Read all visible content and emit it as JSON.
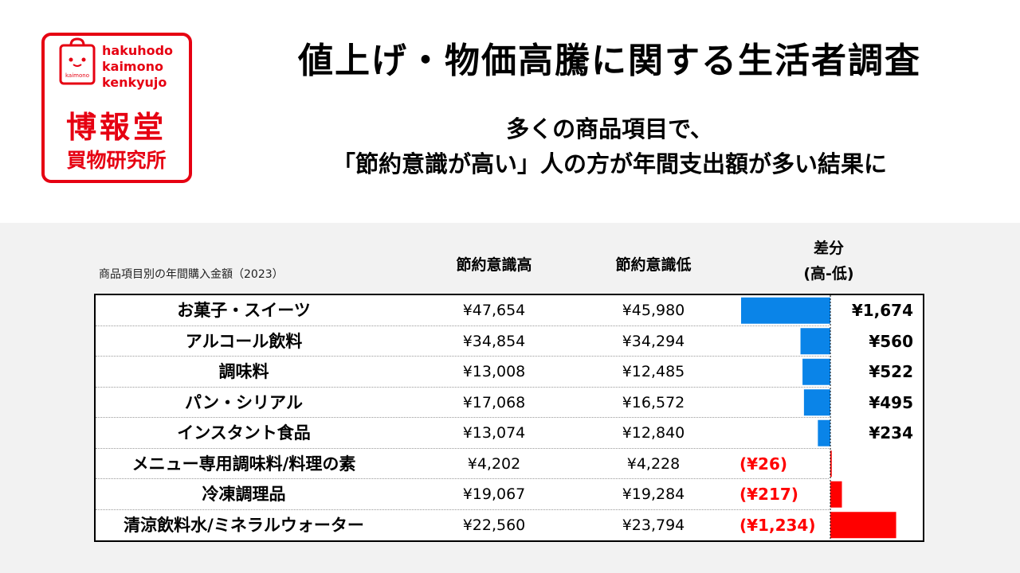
{
  "logo": {
    "line1": "hakuhodo",
    "line2": "kaimono",
    "line3": "kenkyujo",
    "bag_text": "kaimono",
    "kanji1": "博報堂",
    "kanji2": "買物研究所",
    "color": "#e60012"
  },
  "header": {
    "title": "値上げ・物価高騰に関する生活者調査",
    "subtitle_line1": "多くの商品項目で、",
    "subtitle_line2": "「節約意識が高い」人の方が年間支出額が多い結果に"
  },
  "chart_data": {
    "type": "table",
    "caption": "商品項目別の年間購入金額（2023）",
    "columns": {
      "high": "節約意識高",
      "low": "節約意識低",
      "diff_line1": "差分",
      "diff_line2": "(高-低)"
    },
    "colors": {
      "positive": "#0a84e8",
      "negative": "#ff0000"
    },
    "rows": [
      {
        "name": "お菓子・スイーツ",
        "high": "¥47,654",
        "low": "¥45,980",
        "diff_label": "¥1,674",
        "diff": 1674
      },
      {
        "name": "アルコール飲料",
        "high": "¥34,854",
        "low": "¥34,294",
        "diff_label": "¥560",
        "diff": 560
      },
      {
        "name": "調味料",
        "high": "¥13,008",
        "low": "¥12,485",
        "diff_label": "¥522",
        "diff": 522
      },
      {
        "name": "パン・シリアル",
        "high": "¥17,068",
        "low": "¥16,572",
        "diff_label": "¥495",
        "diff": 495
      },
      {
        "name": "インスタント食品",
        "high": "¥13,074",
        "low": "¥12,840",
        "diff_label": "¥234",
        "diff": 234
      },
      {
        "name": "メニュー専用調味料/料理の素",
        "high": "¥4,202",
        "low": "¥4,228",
        "diff_label": "(¥26)",
        "diff": -26
      },
      {
        "name": "冷凍調理品",
        "high": "¥19,067",
        "low": "¥19,284",
        "diff_label": "(¥217)",
        "diff": -217
      },
      {
        "name": "清涼飲料水/ミネラルウォーター",
        "high": "¥22,560",
        "low": "¥23,794",
        "diff_label": "(¥1,234)",
        "diff": -1234
      }
    ]
  }
}
